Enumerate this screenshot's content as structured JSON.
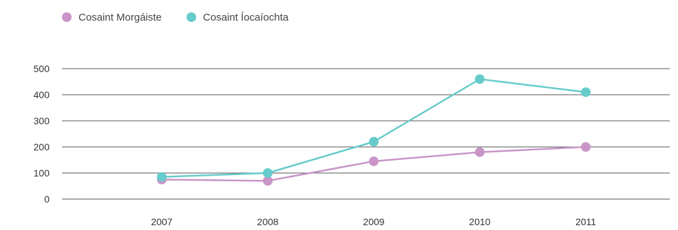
{
  "chart_data": {
    "type": "line",
    "categories": [
      "2007",
      "2008",
      "2009",
      "2010",
      "2011"
    ],
    "series": [
      {
        "name": "Cosaint Morgáiste",
        "color": "#c995c7",
        "values": [
          75,
          70,
          145,
          180,
          200
        ]
      },
      {
        "name": "Cosaint Íocaíochta",
        "color": "#67cbcb",
        "values": [
          85,
          100,
          220,
          460,
          410
        ]
      }
    ],
    "y_ticks": [
      "0",
      "100",
      "200",
      "300",
      "400",
      "500"
    ],
    "ylim": [
      0,
      500
    ],
    "title": "",
    "xlabel": "",
    "ylabel": "",
    "grid": true,
    "legend_position": "top-left"
  }
}
